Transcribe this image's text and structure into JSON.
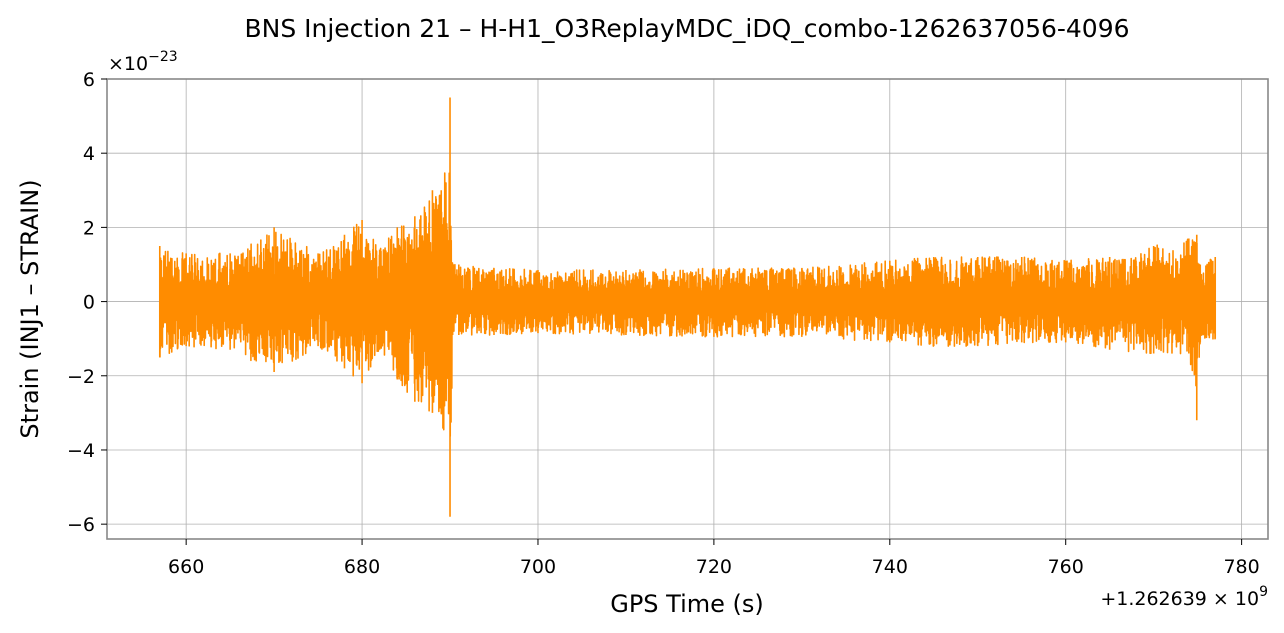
{
  "chart_data": {
    "type": "line",
    "title": "BNS Injection 21 – H-H1_O3ReplayMDC_iDQ_combo-1262637056-4096",
    "xlabel": "GPS Time (s)",
    "ylabel": "Strain (INJ1 – STRAIN)",
    "x_offset_text": "+1.262639 × 10",
    "x_offset_exponent": "9",
    "y_scale_text": "×10",
    "y_scale_exponent": "−23",
    "xlim": [
      651,
      783
    ],
    "ylim": [
      -6.4,
      6
    ],
    "x_ticks": [
      660,
      680,
      700,
      720,
      740,
      760,
      780
    ],
    "x_tick_labels": [
      "660",
      "680",
      "700",
      "720",
      "740",
      "760",
      "780"
    ],
    "y_ticks": [
      -6,
      -4,
      -2,
      0,
      2,
      4,
      6
    ],
    "y_tick_labels": [
      "−6",
      "−4",
      "−2",
      "0",
      "2",
      "4",
      "6"
    ],
    "grid": true,
    "series": [
      {
        "color": "#ff8c00",
        "x_range": [
          657.0,
          777.0
        ],
        "envelope": {
          "x": [
            657,
            660,
            665,
            670,
            675,
            678,
            680,
            682,
            684,
            686,
            688,
            689,
            690.0,
            690.3,
            691,
            695,
            700,
            710,
            720,
            730,
            740,
            745,
            750,
            755,
            760,
            765,
            770,
            774,
            774.9,
            775.3,
            777
          ],
          "upper": [
            1.5,
            1.3,
            1.3,
            2.0,
            1.3,
            1.8,
            2.2,
            1.4,
            2.0,
            2.3,
            3.0,
            3.0,
            5.5,
            1.0,
            1.0,
            0.9,
            0.85,
            0.85,
            0.9,
            0.9,
            1.1,
            1.2,
            1.2,
            1.2,
            1.1,
            1.2,
            1.5,
            1.7,
            1.8,
            1.0,
            1.2
          ],
          "lower": [
            -1.5,
            -1.2,
            -1.3,
            -1.9,
            -1.2,
            -1.8,
            -2.2,
            -1.3,
            -2.1,
            -2.7,
            -3.0,
            -3.0,
            -5.8,
            -0.9,
            -0.9,
            -0.9,
            -0.85,
            -0.9,
            -0.95,
            -0.95,
            -1.1,
            -1.2,
            -1.2,
            -1.1,
            -1.1,
            -1.3,
            -1.4,
            -1.4,
            -3.2,
            -1.1,
            -1.0
          ]
        }
      }
    ]
  }
}
